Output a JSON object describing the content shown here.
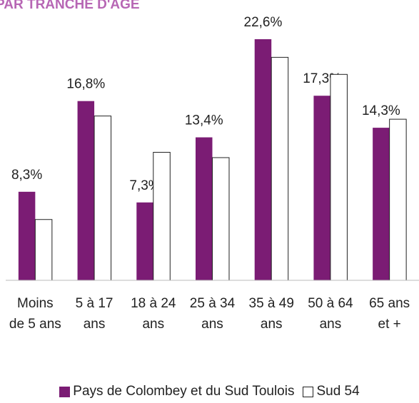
{
  "chart_data": {
    "type": "bar",
    "title": "PAR TRANCHE D'AGE",
    "categories": [
      "Moins de 5 ans",
      "5 à 17 ans",
      "18 à 24 ans",
      "25 à 34 ans",
      "35 à 49 ans",
      "50 à 64 ans",
      "65 ans et +"
    ],
    "series": [
      {
        "name": "Pays de Colombey et du Sud Toulois",
        "color": "#7b1c74",
        "values": [
          8.3,
          16.8,
          7.3,
          13.4,
          22.6,
          17.3,
          14.3
        ],
        "value_labels": [
          "8,3%",
          "16,8%",
          "7,3%",
          "13,4%",
          "22,6%",
          "17,3%",
          "14,3%"
        ]
      },
      {
        "name": "Sud 54",
        "color": "#ffffff",
        "values": [
          5.7,
          15.4,
          12.0,
          11.5,
          20.9,
          19.3,
          15.1
        ]
      }
    ],
    "ylim": [
      0,
      24
    ],
    "legend": "bottom"
  }
}
